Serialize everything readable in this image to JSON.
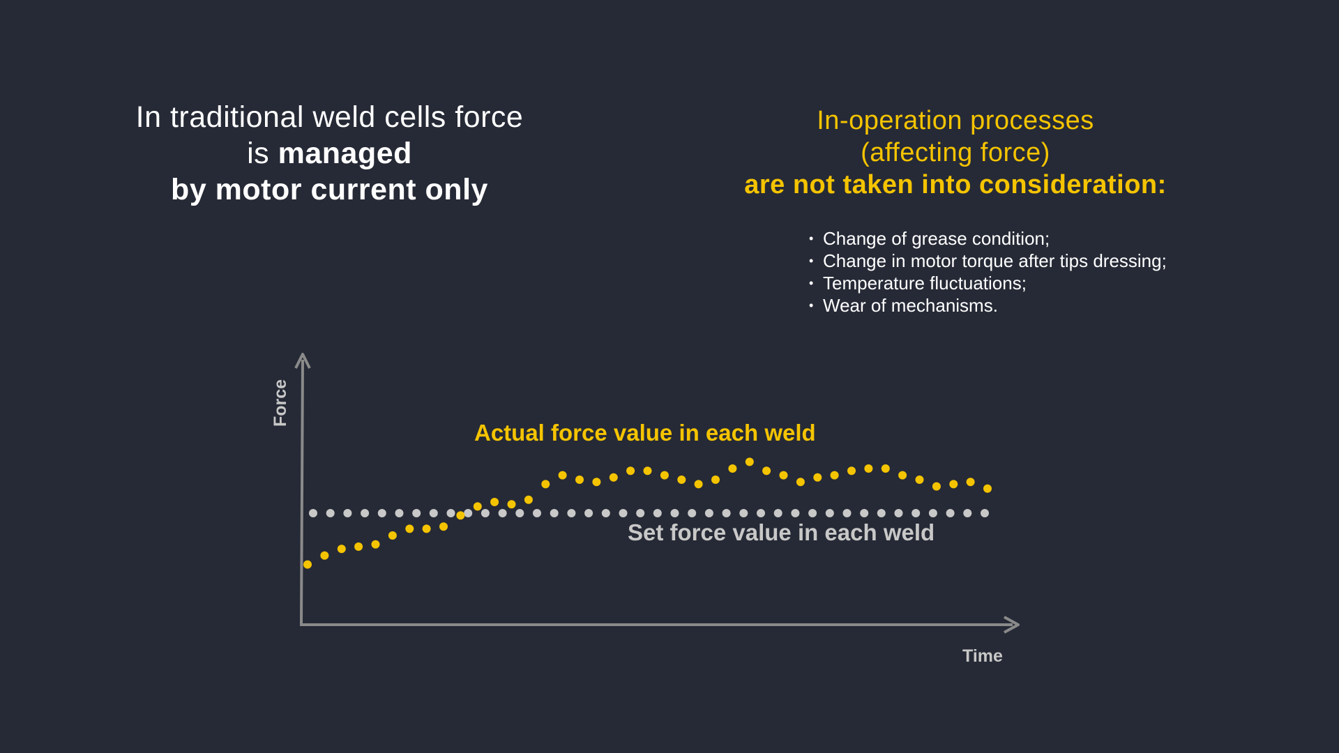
{
  "left_heading": {
    "line1": "In traditional weld cells force",
    "line2_prefix": "is ",
    "line2_bold": "managed",
    "line3": "by motor current only"
  },
  "right_heading": {
    "line1": "In-operation processes",
    "line2": "(affecting force)",
    "line3": "are not taken into consideration:"
  },
  "factors": [
    "Change of grease condition;",
    "Change in motor torque after tips dressing;",
    "Temperature fluctuations;",
    "Wear of mechanisms."
  ],
  "colors": {
    "background": "#262a36",
    "accent": "#f5c400",
    "set_series": "#c8c8c8",
    "axis": "#8a8a8a"
  },
  "chart_data": {
    "type": "scatter",
    "xlabel": "Time",
    "ylabel": "Force",
    "grid": false,
    "legend": "inline",
    "ylim": [
      0,
      100
    ],
    "series": [
      {
        "name": "Actual force value in each weld",
        "color": "#f5c400",
        "x": [
          1,
          2,
          3,
          4,
          5,
          6,
          7,
          8,
          9,
          10,
          11,
          12,
          13,
          14,
          15,
          16,
          17,
          18,
          19,
          20,
          21,
          22,
          23,
          24,
          25,
          26,
          27,
          28,
          29,
          30,
          31,
          32,
          33,
          34,
          35,
          36,
          37,
          38,
          39,
          40,
          41
        ],
        "values": [
          22,
          26,
          29,
          30,
          31,
          35,
          38,
          38,
          39,
          44,
          48,
          50,
          49,
          51,
          58,
          62,
          60,
          59,
          61,
          64,
          64,
          62,
          60,
          58,
          60,
          65,
          68,
          64,
          62,
          59,
          61,
          62,
          64,
          65,
          65,
          62,
          60,
          57,
          58,
          59,
          56
        ]
      },
      {
        "name": "Set force value in each weld",
        "color": "#c8c8c8",
        "x": [
          1,
          2,
          3,
          4,
          5,
          6,
          7,
          8,
          9,
          10,
          11,
          12,
          13,
          14,
          15,
          16,
          17,
          18,
          19,
          20,
          21,
          22,
          23,
          24,
          25,
          26,
          27,
          28,
          29,
          30,
          31,
          32,
          33,
          34,
          35,
          36,
          37,
          38,
          39,
          40
        ],
        "values": [
          45,
          45,
          45,
          45,
          45,
          45,
          45,
          45,
          45,
          45,
          45,
          45,
          45,
          45,
          45,
          45,
          45,
          45,
          45,
          45,
          45,
          45,
          45,
          45,
          45,
          45,
          45,
          45,
          45,
          45,
          45,
          45,
          45,
          45,
          45,
          45,
          45,
          45,
          45,
          45
        ]
      }
    ]
  }
}
